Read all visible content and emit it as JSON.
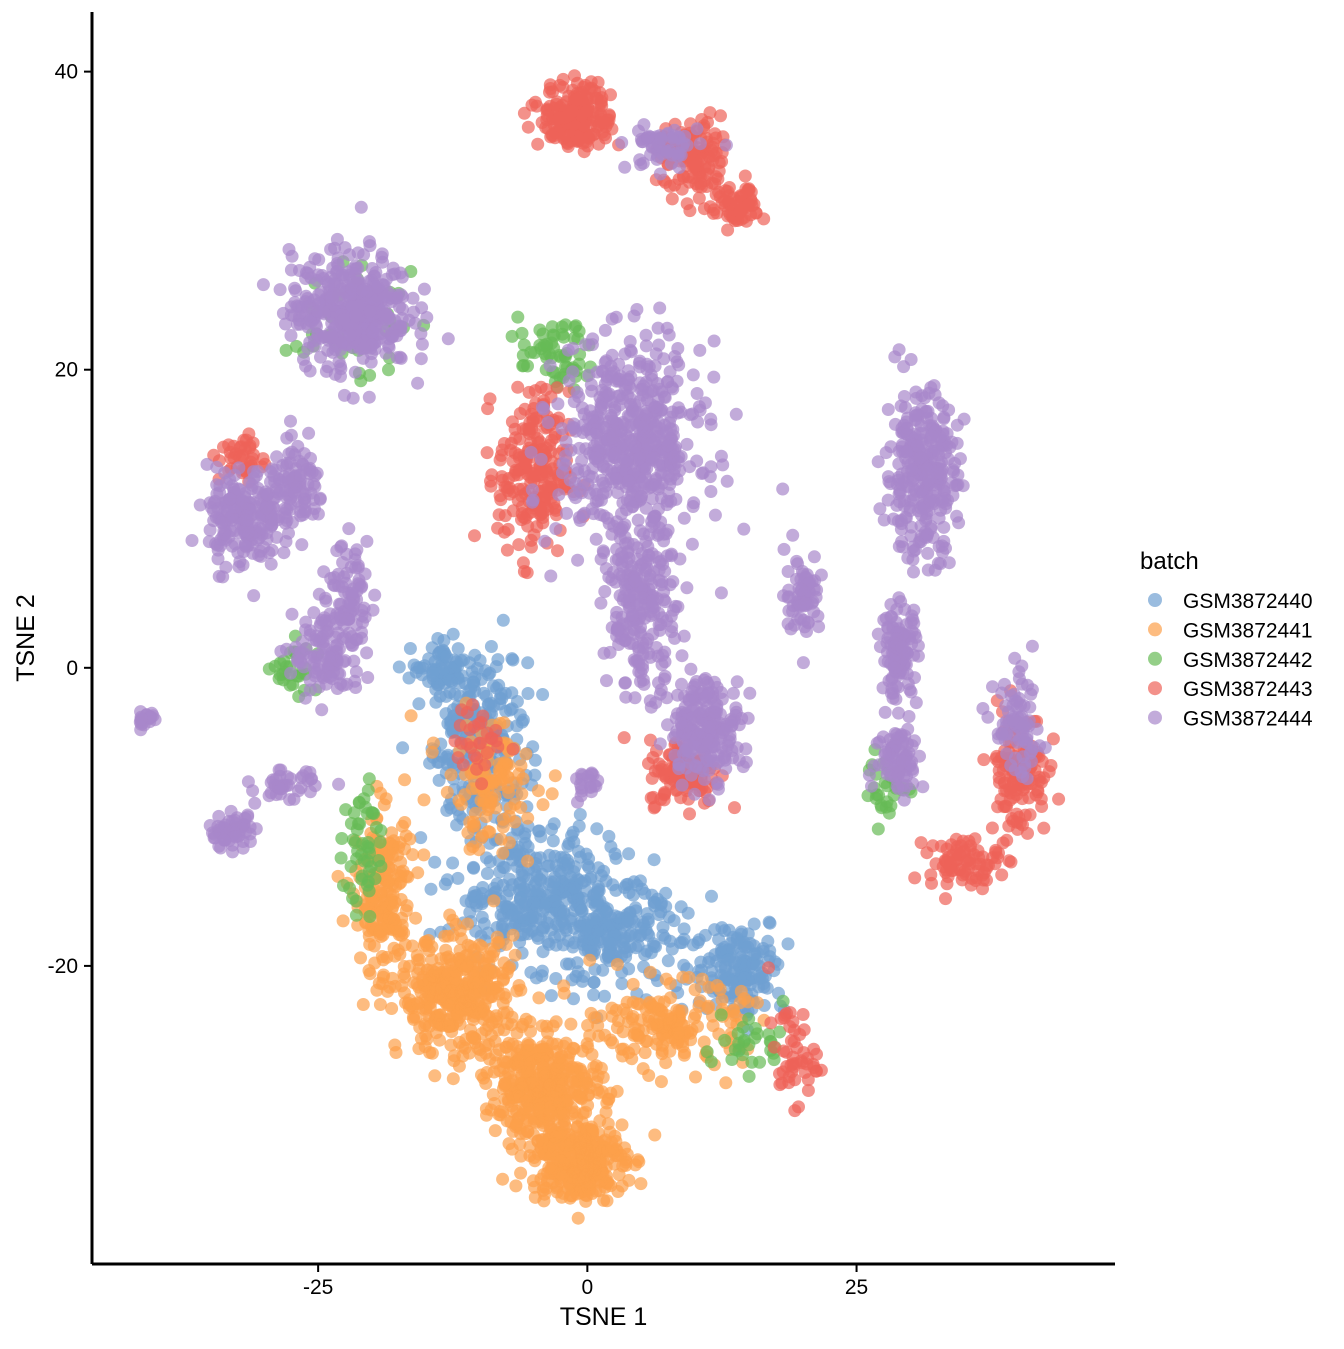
{
  "chart_data": {
    "type": "scatter",
    "xlabel": "TSNE 1",
    "ylabel": "TSNE 2",
    "xlim": [
      -46,
      49
    ],
    "ylim": [
      -40,
      44
    ],
    "x_ticks": [
      -25,
      0,
      25
    ],
    "x_tick_labels": [
      "-25",
      "0",
      "25"
    ],
    "y_ticks": [
      -20,
      0,
      20,
      40
    ],
    "y_tick_labels": [
      "-20",
      "0",
      "20",
      "40"
    ],
    "grid": false,
    "legend": {
      "title": "batch",
      "position": "right",
      "entries": [
        "GSM3872440",
        "GSM3872441",
        "GSM3872442",
        "GSM3872443",
        "GSM3872444"
      ]
    },
    "marker_opacity": 0.7,
    "series": [
      {
        "name": "GSM3872440",
        "color": "#6f9fd2",
        "clusters": [
          {
            "center": [
              -10,
              -5
            ],
            "spread": [
              4,
              5
            ],
            "count": 260
          },
          {
            "center": [
              -5,
              -15
            ],
            "spread": [
              7,
              4
            ],
            "count": 320
          },
          {
            "center": [
              2,
              -18
            ],
            "spread": [
              6,
              3
            ],
            "count": 220
          },
          {
            "center": [
              14,
              -20
            ],
            "spread": [
              4,
              3
            ],
            "count": 160
          },
          {
            "center": [
              -13,
              0
            ],
            "spread": [
              3,
              1.5
            ],
            "count": 70
          }
        ]
      },
      {
        "name": "GSM3872441",
        "color": "#fca04a",
        "clusters": [
          {
            "center": [
              -12,
              -22
            ],
            "spread": [
              5,
              3.5
            ],
            "count": 380
          },
          {
            "center": [
              -4,
              -28
            ],
            "spread": [
              5,
              3
            ],
            "count": 360
          },
          {
            "center": [
              -1,
              -33
            ],
            "spread": [
              4,
              2.5
            ],
            "count": 320
          },
          {
            "center": [
              8,
              -24
            ],
            "spread": [
              6,
              2.5
            ],
            "count": 180
          },
          {
            "center": [
              -19,
              -15
            ],
            "spread": [
              2.5,
              5
            ],
            "count": 200
          },
          {
            "center": [
              -9,
              -8
            ],
            "spread": [
              4,
              4
            ],
            "count": 120
          }
        ]
      },
      {
        "name": "GSM3872442",
        "color": "#66bb55",
        "clusters": [
          {
            "center": [
              -3,
              21
            ],
            "spread": [
              3,
              2
            ],
            "count": 60
          },
          {
            "center": [
              -22,
              23
            ],
            "spread": [
              5,
              3
            ],
            "count": 50
          },
          {
            "center": [
              -21,
              -12
            ],
            "spread": [
              1.5,
              4
            ],
            "count": 50
          },
          {
            "center": [
              -27,
              0
            ],
            "spread": [
              2,
              2
            ],
            "count": 30
          },
          {
            "center": [
              28,
              -8
            ],
            "spread": [
              2,
              2
            ],
            "count": 30
          },
          {
            "center": [
              15,
              -25
            ],
            "spread": [
              3,
              2
            ],
            "count": 30
          }
        ]
      },
      {
        "name": "GSM3872443",
        "color": "#ee6258",
        "clusters": [
          {
            "center": [
              -1,
              37
            ],
            "spread": [
              3,
              2
            ],
            "count": 200
          },
          {
            "center": [
              10,
              34
            ],
            "spread": [
              3,
              2.5
            ],
            "count": 120
          },
          {
            "center": [
              14,
              31
            ],
            "spread": [
              2,
              1.5
            ],
            "count": 60
          },
          {
            "center": [
              -5,
              13
            ],
            "spread": [
              3,
              5
            ],
            "count": 220
          },
          {
            "center": [
              9,
              -7
            ],
            "spread": [
              3,
              2
            ],
            "count": 120
          },
          {
            "center": [
              40,
              -7
            ],
            "spread": [
              2.5,
              4
            ],
            "count": 130
          },
          {
            "center": [
              35,
              -13
            ],
            "spread": [
              3,
              1.5
            ],
            "count": 80
          },
          {
            "center": [
              -32,
              14
            ],
            "spread": [
              2,
              1.5
            ],
            "count": 40
          },
          {
            "center": [
              19,
              -26
            ],
            "spread": [
              2,
              3
            ],
            "count": 50
          },
          {
            "center": [
              -10,
              -5
            ],
            "spread": [
              2,
              2
            ],
            "count": 30
          }
        ]
      },
      {
        "name": "GSM3872444",
        "color": "#a888cb",
        "clusters": [
          {
            "center": [
              -22,
              24
            ],
            "spread": [
              5,
              3.5
            ],
            "count": 420
          },
          {
            "center": [
              -32,
              10
            ],
            "spread": [
              3,
              3
            ],
            "count": 200
          },
          {
            "center": [
              -27,
              12
            ],
            "spread": [
              2.5,
              2.5
            ],
            "count": 110
          },
          {
            "center": [
              4,
              15
            ],
            "spread": [
              6,
              6
            ],
            "count": 560
          },
          {
            "center": [
              5,
              4
            ],
            "spread": [
              3,
              5
            ],
            "count": 220
          },
          {
            "center": [
              11,
              -4
            ],
            "spread": [
              3,
              3
            ],
            "count": 220
          },
          {
            "center": [
              31,
              13
            ],
            "spread": [
              3,
              5
            ],
            "count": 300
          },
          {
            "center": [
              29,
              1
            ],
            "spread": [
              1.5,
              3
            ],
            "count": 120
          },
          {
            "center": [
              29,
              -6
            ],
            "spread": [
              2,
              2
            ],
            "count": 80
          },
          {
            "center": [
              20,
              5
            ],
            "spread": [
              1.5,
              2.5
            ],
            "count": 70
          },
          {
            "center": [
              -24,
              1
            ],
            "spread": [
              3,
              3
            ],
            "count": 120
          },
          {
            "center": [
              -22,
              5
            ],
            "spread": [
              1.5,
              3
            ],
            "count": 70
          },
          {
            "center": [
              -33,
              -11
            ],
            "spread": [
              2,
              1
            ],
            "count": 60
          },
          {
            "center": [
              -28,
              -8
            ],
            "spread": [
              2.5,
              1
            ],
            "count": 40
          },
          {
            "center": [
              40,
              -4
            ],
            "spread": [
              2,
              3
            ],
            "count": 80
          },
          {
            "center": [
              -41,
              -3.5
            ],
            "spread": [
              1,
              0.6
            ],
            "count": 20
          },
          {
            "center": [
              7,
              35
            ],
            "spread": [
              3,
              1.5
            ],
            "count": 60
          },
          {
            "center": [
              0,
              -8
            ],
            "spread": [
              1,
              1
            ],
            "count": 20
          }
        ]
      }
    ]
  }
}
